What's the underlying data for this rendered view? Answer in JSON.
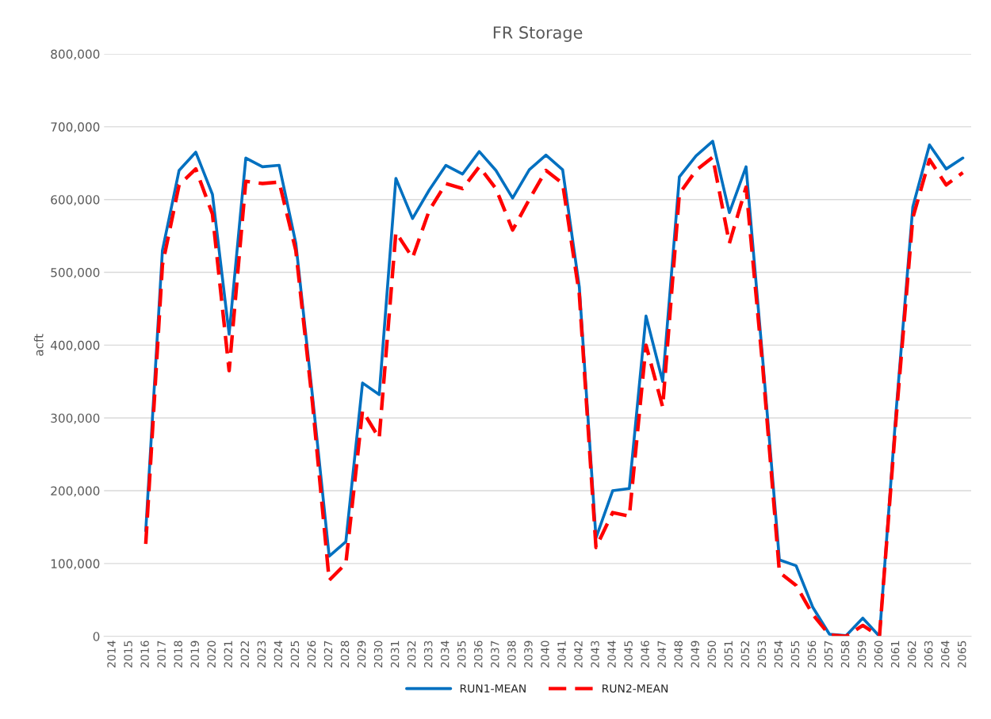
{
  "chart_data": {
    "type": "line",
    "title": "FR Storage",
    "ylabel": "acft",
    "categories": [
      "2014",
      "2015",
      "2016",
      "2017",
      "2018",
      "2019",
      "2020",
      "2021",
      "2022",
      "2023",
      "2024",
      "2025",
      "2026",
      "2027",
      "2028",
      "2029",
      "2030",
      "2031",
      "2032",
      "2033",
      "2034",
      "2035",
      "2036",
      "2037",
      "2038",
      "2039",
      "2040",
      "2041",
      "2042",
      "2043",
      "2044",
      "2045",
      "2046",
      "2047",
      "2048",
      "2049",
      "2050",
      "2051",
      "2052",
      "2053",
      "2054",
      "2055",
      "2056",
      "2057",
      "2058",
      "2059",
      "2060",
      "2061",
      "2062",
      "2063",
      "2064",
      "2065"
    ],
    "series": [
      {
        "name": "RUN1-MEAN",
        "color": "#0070c0",
        "line_style": "solid",
        "values": [
          null,
          null,
          145000,
          530000,
          640000,
          665000,
          607000,
          415000,
          657000,
          645000,
          647000,
          540000,
          330000,
          110000,
          130000,
          348000,
          332000,
          629000,
          574000,
          613000,
          647000,
          635000,
          666000,
          640000,
          602000,
          641000,
          661000,
          641000,
          480000,
          135000,
          200000,
          203000,
          440000,
          350000,
          631000,
          660000,
          680000,
          582000,
          645000,
          380000,
          105000,
          97000,
          40000,
          3000,
          1000,
          25000,
          0,
          310000,
          590000,
          675000,
          642000,
          657000
        ]
      },
      {
        "name": "RUN2-MEAN",
        "color": "#ff0000",
        "line_style": "dashed",
        "values": [
          null,
          null,
          127000,
          510000,
          620000,
          642000,
          580000,
          365000,
          625000,
          622000,
          624000,
          530000,
          320000,
          77000,
          100000,
          310000,
          272000,
          555000,
          520000,
          585000,
          622000,
          615000,
          645000,
          615000,
          558000,
          600000,
          640000,
          622000,
          470000,
          122000,
          170000,
          165000,
          400000,
          315000,
          608000,
          640000,
          658000,
          540000,
          617000,
          370000,
          88000,
          70000,
          30000,
          2000,
          0,
          15000,
          0,
          300000,
          575000,
          655000,
          620000,
          637000
        ]
      }
    ],
    "ylim": [
      0,
      800000
    ],
    "yticks": [
      0,
      {
        "value": 100000,
        "label": "100,000"
      },
      {
        "value": 200000,
        "label": "200,000"
      },
      {
        "value": 300000,
        "label": "300,000"
      },
      {
        "value": 400000,
        "label": "400,000"
      },
      {
        "value": 500000,
        "label": "500,000"
      },
      {
        "value": 600000,
        "label": "600,000"
      },
      {
        "value": 700000,
        "label": "700,000"
      },
      {
        "value": 800000,
        "label": "800,000"
      }
    ],
    "grid": "y",
    "legend": "bottom",
    "marker": "none"
  }
}
